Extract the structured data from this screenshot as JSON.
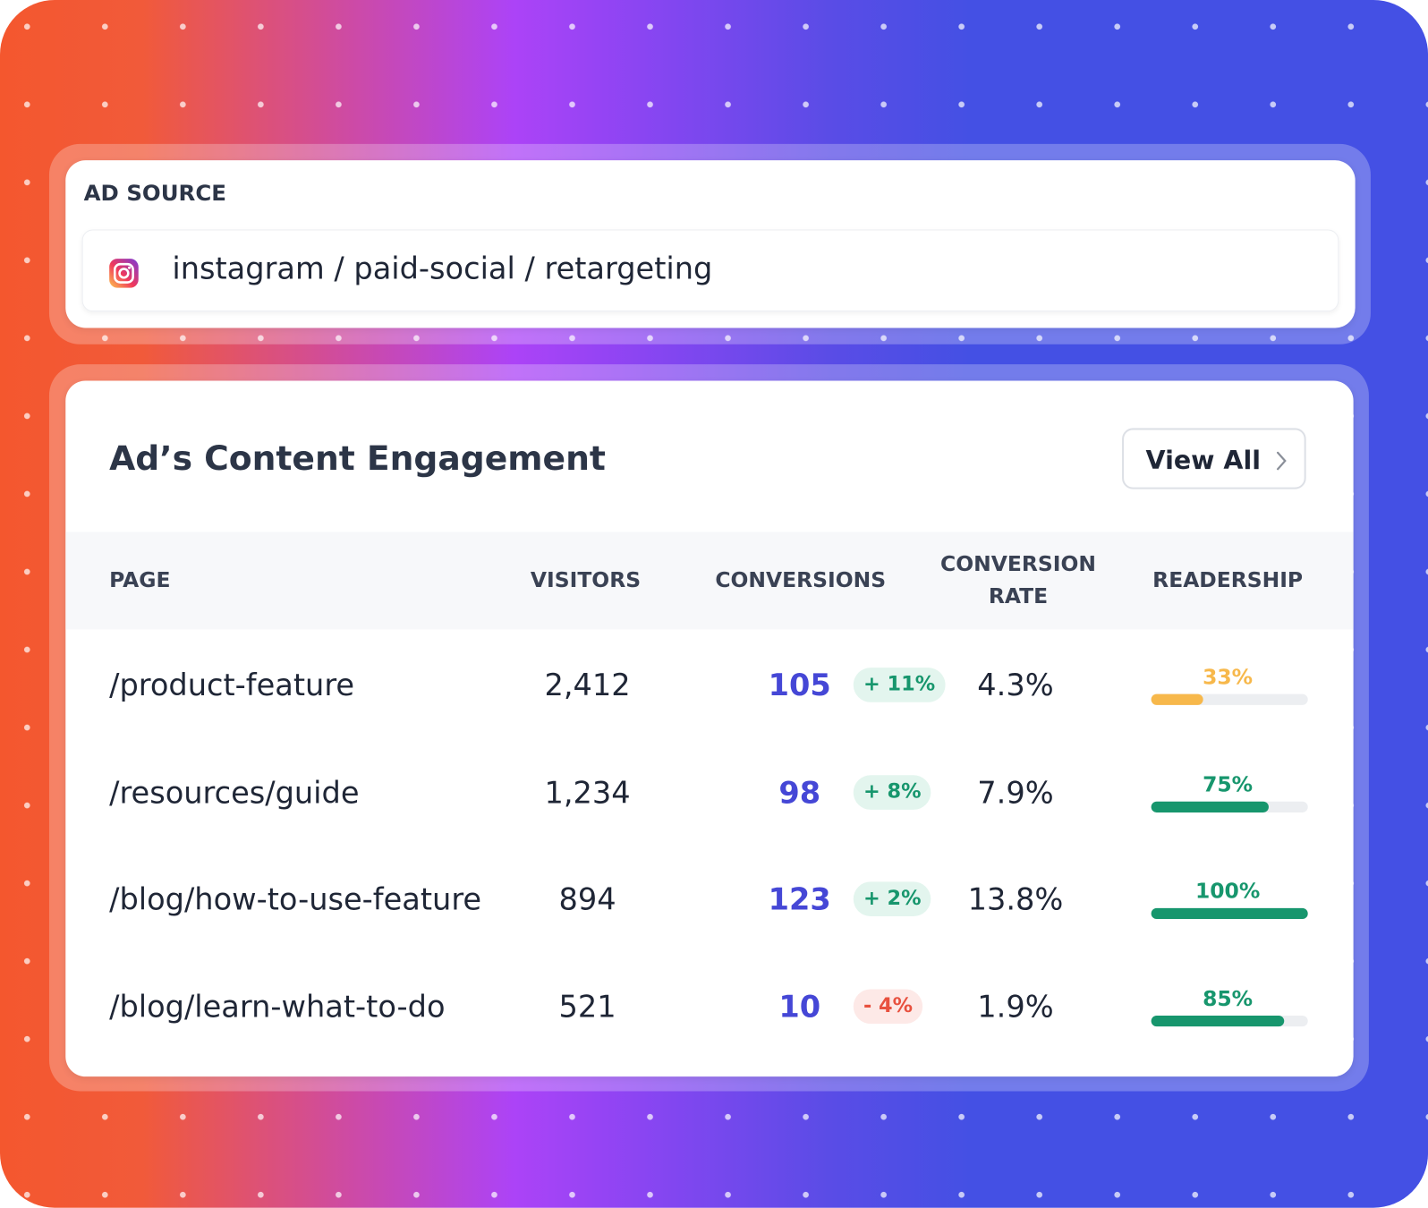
{
  "ad_source": {
    "label": "AD SOURCE",
    "value": "instagram / paid-social / retargeting"
  },
  "engagement": {
    "title": "Ad’s Content Engagement",
    "view_all": "View All",
    "columns": [
      "PAGE",
      "VISITORS",
      "CONVERSIONS",
      "CONVERSION RATE",
      "READERSHIP"
    ],
    "rows": [
      {
        "page": "/product-feature",
        "visitors": "2,412",
        "conversions": "105",
        "change": "+ 11%",
        "rate": "4.3%",
        "readership": 33,
        "readership_label": "33%",
        "bar_color": "#f7b84b"
      },
      {
        "page": "/resources/guide",
        "visitors": "1,234",
        "conversions": "98",
        "change": "+ 8%",
        "rate": "7.9%",
        "readership": 75,
        "readership_label": "75%",
        "bar_color": "#17966d"
      },
      {
        "page": "/blog/how-to-use-feature",
        "visitors": "894",
        "conversions": "123",
        "change": "+ 2%",
        "rate": "13.8%",
        "readership": 100,
        "readership_label": "100%",
        "bar_color": "#17966d"
      },
      {
        "page": "/blog/learn-what-to-do",
        "visitors": "521",
        "conversions": "10",
        "change": "- 4%",
        "rate": "1.9%",
        "readership": 85,
        "readership_label": "85%",
        "bar_color": "#17966d"
      }
    ]
  }
}
